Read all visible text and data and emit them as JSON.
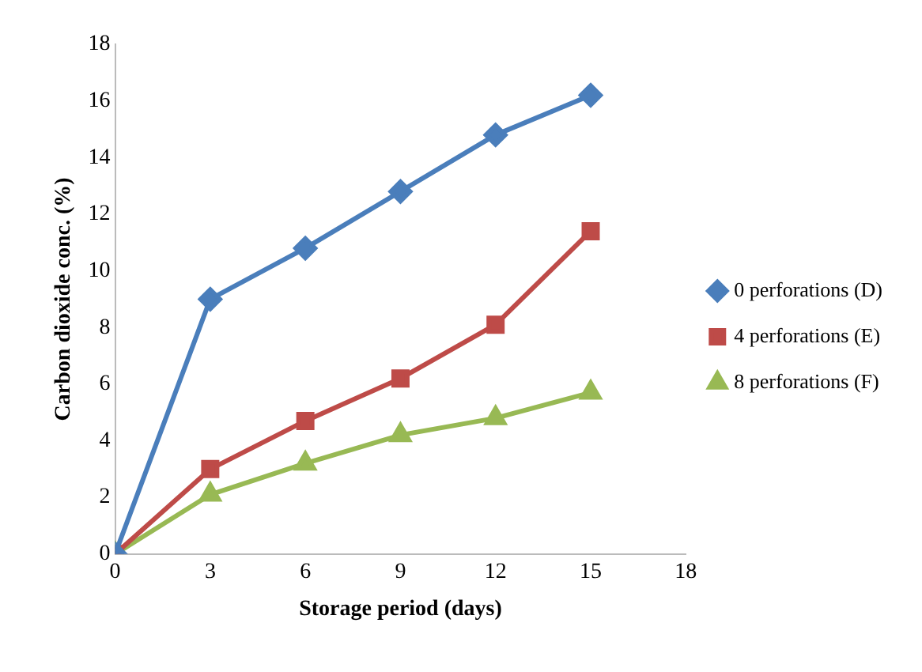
{
  "chart_data": {
    "type": "line",
    "xlabel": "Storage period (days)",
    "ylabel": "Carbon dioxide conc. (%)",
    "x": [
      0,
      3,
      6,
      9,
      12,
      15
    ],
    "series": [
      {
        "name": "0 perforations (D)",
        "color": "#4a7ebb",
        "values": [
          0,
          9.0,
          10.8,
          12.8,
          14.8,
          16.2
        ],
        "marker": "diamond"
      },
      {
        "name": "4 perforations (E)",
        "color": "#be4b48",
        "values": [
          0,
          3.0,
          4.7,
          6.2,
          8.1,
          11.4
        ],
        "marker": "square"
      },
      {
        "name": "8 perforations (F)",
        "color": "#98b954",
        "values": [
          0,
          2.1,
          3.2,
          4.2,
          4.8,
          5.7
        ],
        "marker": "triangle"
      }
    ],
    "xlim": [
      0,
      18
    ],
    "xticks": [
      0,
      3,
      6,
      9,
      12,
      15,
      18
    ],
    "ylim": [
      0,
      18
    ],
    "yticks": [
      0,
      2,
      4,
      6,
      8,
      10,
      12,
      14,
      16,
      18
    ],
    "grid": false,
    "legend": "right"
  }
}
